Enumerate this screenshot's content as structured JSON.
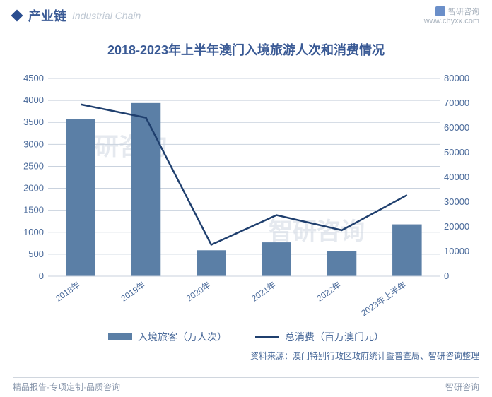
{
  "header": {
    "section_cn": "产业链",
    "section_en": "Industrial Chain",
    "brand_name": "智研咨询",
    "brand_url": "www.chyxx.com"
  },
  "chart": {
    "type": "bar+line",
    "title": "2018-2023年上半年澳门入境旅游人次和消费情况",
    "categories": [
      "2018年",
      "2019年",
      "2020年",
      "2021年",
      "2022年",
      "2023年上半年"
    ],
    "bar_series": {
      "name": "入境旅客（万人次）",
      "values": [
        3580,
        3940,
        590,
        770,
        570,
        1180
      ],
      "color": "#5b7fa6"
    },
    "line_series": {
      "name": "总消费（百万澳门元）",
      "values": [
        69500,
        64100,
        12700,
        24700,
        18600,
        32800
      ],
      "color": "#1f3f6e"
    },
    "y_left": {
      "min": 0,
      "max": 4500,
      "step": 500
    },
    "y_right": {
      "min": 0,
      "max": 80000,
      "step": 10000
    },
    "grid_color": "#c9d2de",
    "background_color": "#ffffff",
    "bar_width_ratio": 0.45,
    "axis_fontsize": 13,
    "xlabel_fontsize": 12,
    "xlabel_rotate_deg": -35,
    "line_width": 2.5
  },
  "legend": {
    "bar_label": "入境旅客（万人次）",
    "line_label": "总消费（百万澳门元）"
  },
  "source": "资料来源：澳门特别行政区政府统计暨普查局、智研咨询整理",
  "footer": {
    "left": "精品报告·专项定制·品质咨询",
    "right": "智研咨询"
  },
  "watermark": "智研咨询"
}
